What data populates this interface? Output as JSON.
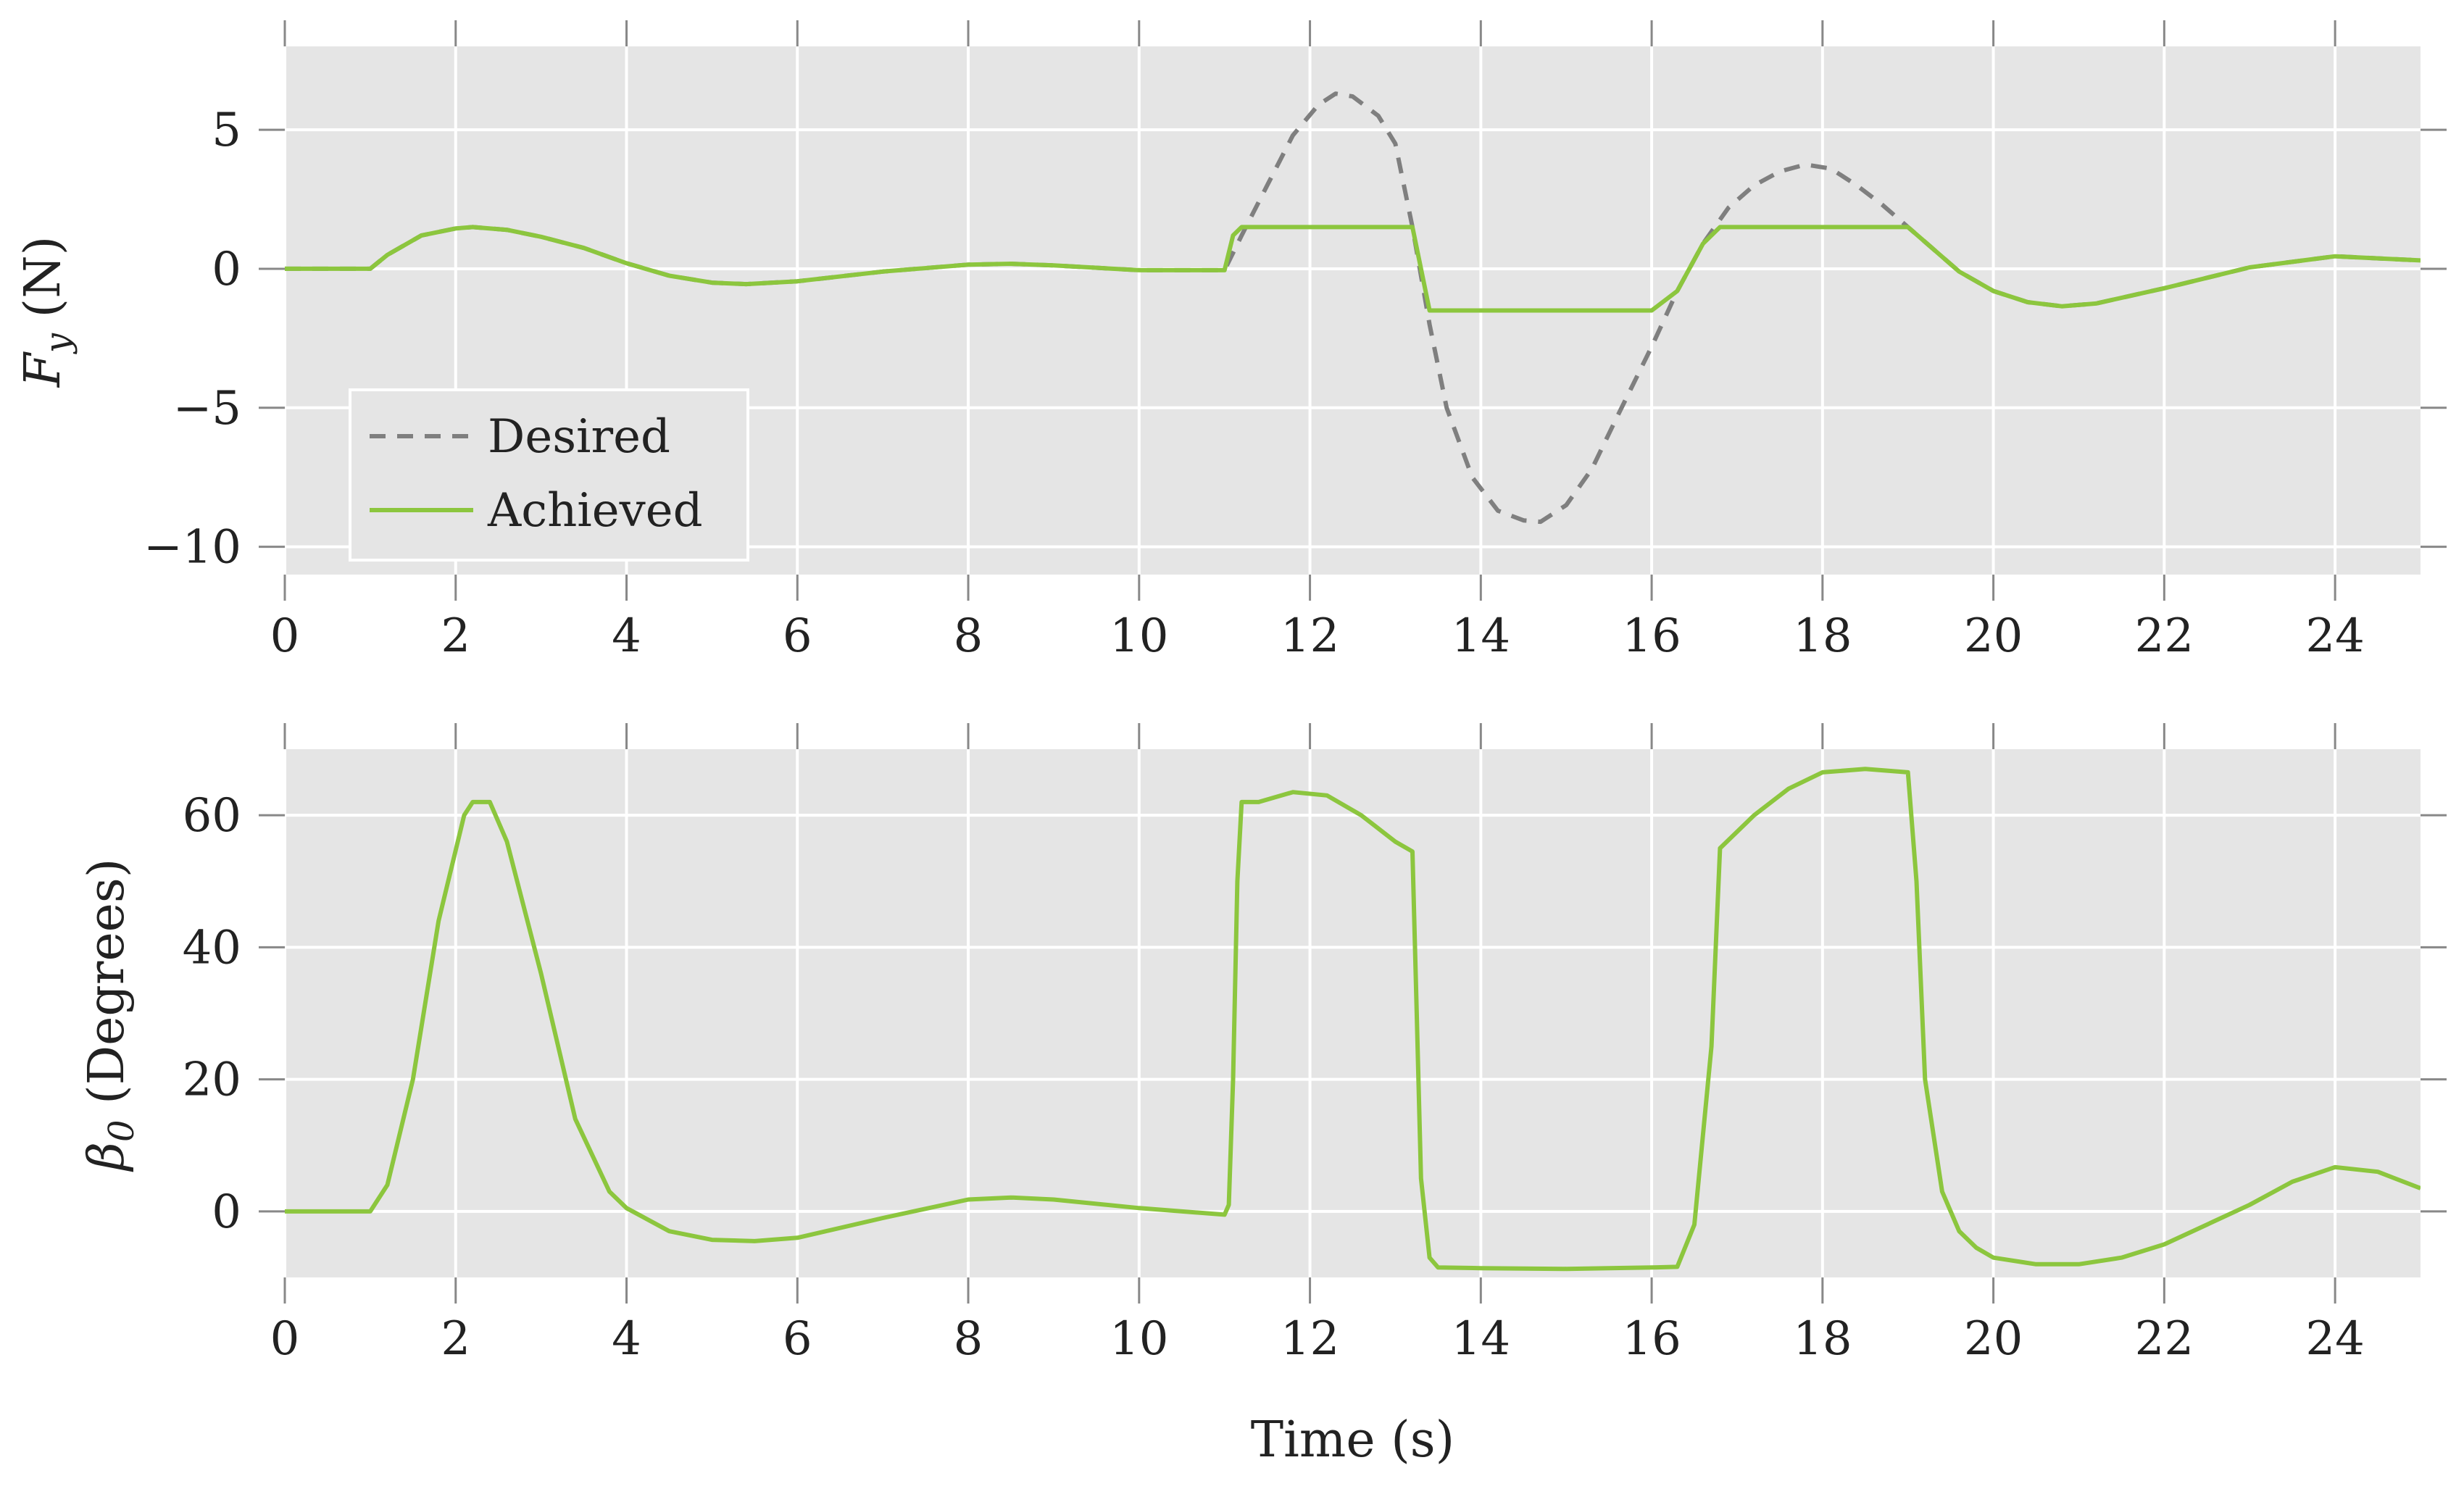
{
  "chart_data": [
    {
      "type": "line",
      "ylabel": "F_y (N)",
      "ylabel_parts": {
        "symbol": "F",
        "subscript": "y",
        "unit": "(N)"
      },
      "xlabel": "",
      "xlim": [
        0,
        25
      ],
      "ylim": [
        -11,
        8
      ],
      "xticks": [
        0,
        2,
        4,
        6,
        8,
        10,
        12,
        14,
        16,
        18,
        20,
        22,
        24
      ],
      "yticks": [
        5,
        0,
        -5,
        -10
      ],
      "ytick_labels": [
        "5",
        "0",
        "−5",
        "−10"
      ],
      "grid": true,
      "legend": {
        "position": "bottom-left"
      },
      "series": [
        {
          "name": "Desired",
          "style": "dashed",
          "color": "#7f7f7f",
          "x": [
            0,
            1,
            1.2,
            1.6,
            2,
            2.2,
            2.6,
            3,
            3.5,
            4,
            4.5,
            5,
            5.4,
            6,
            7,
            8,
            8.5,
            9,
            10,
            11,
            11.2,
            11.5,
            11.8,
            12.1,
            12.3,
            12.5,
            12.8,
            13,
            13.2,
            13.4,
            13.6,
            13.9,
            14.2,
            14.5,
            14.7,
            15,
            15.3,
            15.6,
            16,
            16.3,
            16.6,
            16.9,
            17.2,
            17.5,
            17.8,
            18.1,
            18.4,
            18.7,
            19,
            19.3,
            19.6,
            20,
            20.4,
            20.8,
            21.2,
            22,
            23,
            24,
            25
          ],
          "y": [
            0,
            0,
            0.5,
            1.2,
            1.45,
            1.5,
            1.4,
            1.15,
            0.75,
            0.2,
            -0.25,
            -0.5,
            -0.55,
            -0.45,
            -0.1,
            0.15,
            0.18,
            0.12,
            -0.05,
            -0.05,
            1.2,
            3.0,
            4.8,
            5.9,
            6.3,
            6.2,
            5.5,
            4.5,
            1.5,
            -2.0,
            -5.0,
            -7.5,
            -8.7,
            -9.05,
            -9.1,
            -8.5,
            -7.2,
            -5.3,
            -2.8,
            -0.8,
            0.9,
            2.2,
            3.0,
            3.5,
            3.75,
            3.6,
            3.0,
            2.3,
            1.5,
            0.7,
            -0.1,
            -0.8,
            -1.2,
            -1.35,
            -1.25,
            -0.7,
            0.05,
            0.45,
            0.3
          ]
        },
        {
          "name": "Achieved",
          "style": "solid",
          "color": "#8cc63e",
          "x": [
            0,
            1,
            1.2,
            1.6,
            2,
            2.2,
            2.6,
            3,
            3.5,
            4,
            4.5,
            5,
            5.4,
            6,
            7,
            8,
            8.5,
            9,
            10,
            11,
            11.1,
            11.2,
            12,
            13.2,
            13.4,
            13.6,
            14,
            15,
            16,
            16.3,
            16.6,
            16.8,
            18,
            19,
            19.3,
            19.6,
            20,
            20.4,
            20.8,
            21.2,
            22,
            23,
            24,
            25
          ],
          "y": [
            0,
            0,
            0.5,
            1.2,
            1.45,
            1.5,
            1.4,
            1.15,
            0.75,
            0.2,
            -0.25,
            -0.5,
            -0.55,
            -0.45,
            -0.1,
            0.15,
            0.18,
            0.12,
            -0.05,
            -0.05,
            1.2,
            1.5,
            1.5,
            1.5,
            -1.5,
            -1.5,
            -1.5,
            -1.5,
            -1.5,
            -0.8,
            0.9,
            1.5,
            1.5,
            1.5,
            0.7,
            -0.1,
            -0.8,
            -1.2,
            -1.35,
            -1.25,
            -0.7,
            0.05,
            0.45,
            0.3
          ]
        }
      ]
    },
    {
      "type": "line",
      "ylabel": "β0 (Degrees)",
      "ylabel_parts": {
        "symbol": "β",
        "subscript": "0",
        "unit": "(Degrees)"
      },
      "xlabel": "Time (s)",
      "xlim": [
        0,
        25
      ],
      "ylim": [
        -10,
        70
      ],
      "xticks": [
        0,
        2,
        4,
        6,
        8,
        10,
        12,
        14,
        16,
        18,
        20,
        22,
        24
      ],
      "yticks": [
        60,
        40,
        20,
        0
      ],
      "ytick_labels": [
        "60",
        "40",
        "20",
        "0"
      ],
      "grid": true,
      "series": [
        {
          "name": "",
          "style": "solid",
          "color": "#8cc63e",
          "x": [
            0,
            1,
            1.2,
            1.5,
            1.8,
            2.1,
            2.2,
            2.4,
            2.6,
            3.0,
            3.4,
            3.8,
            4,
            4.5,
            5,
            5.5,
            6,
            7,
            8,
            8.5,
            9,
            10,
            11,
            11.05,
            11.1,
            11.15,
            11.2,
            11.4,
            11.8,
            12.2,
            12.6,
            13.0,
            13.2,
            13.25,
            13.3,
            13.4,
            13.5,
            14,
            15,
            16,
            16.3,
            16.5,
            16.7,
            16.8,
            17.2,
            17.6,
            18,
            18.5,
            19,
            19.1,
            19.2,
            19.4,
            19.6,
            19.8,
            20,
            20.5,
            21,
            21.5,
            22,
            23,
            23.5,
            24,
            24.5,
            25
          ],
          "y": [
            0,
            0,
            4,
            20,
            44,
            60,
            62,
            62,
            56,
            36,
            14,
            3,
            0.5,
            -3,
            -4.3,
            -4.5,
            -4,
            -1,
            1.8,
            2.1,
            1.8,
            0.5,
            -0.5,
            1,
            20,
            50,
            62,
            62,
            63.5,
            63,
            60,
            56,
            54.5,
            30,
            5,
            -7,
            -8.5,
            -8.6,
            -8.7,
            -8.5,
            -8.4,
            -2,
            25,
            55,
            60,
            64,
            66.5,
            67,
            66.5,
            50,
            20,
            3,
            -3,
            -5.5,
            -7,
            -8,
            -8,
            -7,
            -5,
            1,
            4.5,
            6.7,
            6,
            3.5
          ]
        }
      ]
    }
  ]
}
